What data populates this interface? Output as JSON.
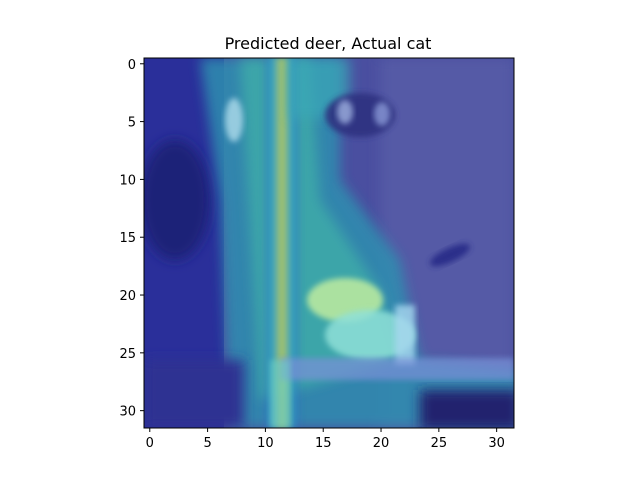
{
  "title": "Predicted deer, Actual cat",
  "axes": {
    "x_ticks": [
      "0",
      "5",
      "10",
      "15",
      "20",
      "25",
      "30"
    ],
    "y_ticks": [
      "0",
      "5",
      "10",
      "15",
      "20",
      "25",
      "30"
    ],
    "x_range": [
      -0.5,
      31.5
    ],
    "y_range": [
      -0.5,
      31.5
    ],
    "y_inverted": true
  },
  "image": {
    "description_size": "32x32",
    "colormap_overlay": "jet",
    "base_tone": "#3a3f9a"
  }
}
